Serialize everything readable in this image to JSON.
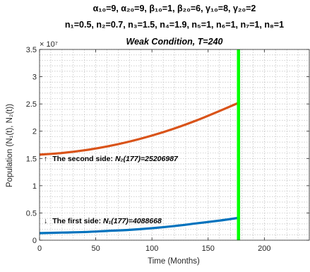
{
  "chart_data": {
    "type": "line",
    "title_lines": [
      "α₁₀=9, α₂₀=9, β₁₀=1, β₂₀=6, γ₁₀=8, γ₂₀=2",
      "n₁=0.5, n₂=0.7, n₃=1.5, n₄=1.9, n₅=1, n₆=1, n₇=1, n₈=1",
      "Weak Condition, T=240"
    ],
    "xlabel": "Time (Months)",
    "ylabel": "Population (N₁(t),  N₂(t))",
    "y_exponent_label": "× 10⁷",
    "xlim": [
      0,
      240
    ],
    "ylim": [
      0,
      3.5
    ],
    "y_scale_multiplier": 10000000,
    "xticks": [
      0,
      50,
      100,
      150,
      200
    ],
    "yticks": [
      0,
      0.5,
      1,
      1.5,
      2,
      2.5,
      3,
      3.5
    ],
    "xtick_labels": [
      "0",
      "50",
      "100",
      "150",
      "200"
    ],
    "ytick_labels": [
      "0",
      "0.5",
      "1",
      "1.5",
      "2",
      "2.5",
      "3",
      "3.5"
    ],
    "grid": true,
    "vertical_line": {
      "x": 177,
      "color": "#00ff00"
    },
    "series": [
      {
        "color": "#d95319",
        "x": [
          0,
          20,
          40,
          60,
          80,
          100,
          120,
          140,
          160,
          177
        ],
        "values": [
          1.57,
          1.6,
          1.65,
          1.72,
          1.81,
          1.92,
          2.05,
          2.2,
          2.37,
          2.52
        ]
      },
      {
        "color": "#0072bd",
        "x": [
          0,
          20,
          40,
          60,
          80,
          100,
          120,
          140,
          160,
          177
        ],
        "values": [
          0.13,
          0.14,
          0.15,
          0.17,
          0.19,
          0.22,
          0.26,
          0.31,
          0.36,
          0.41
        ]
      }
    ],
    "annotations": [
      {
        "arrow": "↑",
        "prefix": "The second side: ",
        "value_label": "N₂(177)=25206987",
        "x": 2,
        "y": 1.45
      },
      {
        "arrow": "↓",
        "prefix": "The first side: ",
        "value_label": "N₁(177)=4088668",
        "x": 2,
        "y": 0.4
      }
    ]
  }
}
